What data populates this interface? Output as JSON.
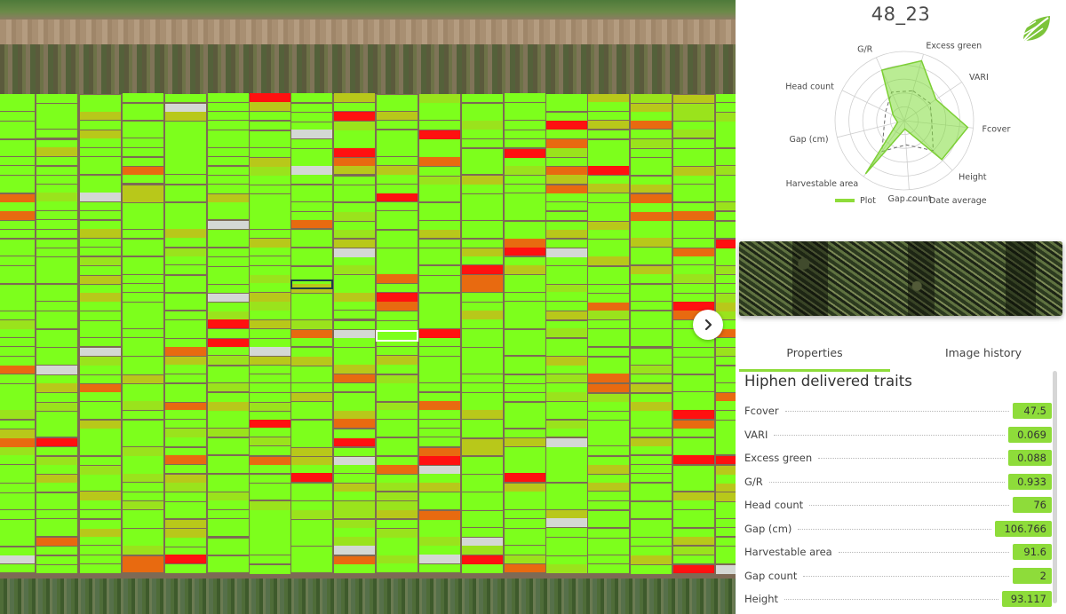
{
  "plot": {
    "title": "48_23"
  },
  "colors": {
    "green": "#7dff1c",
    "yellow_green": "#b8c81a",
    "orange": "#e86a10",
    "red": "#ff1010",
    "gray": "#d4d8d4",
    "accent": "#8edc3a"
  },
  "radar": {
    "axes": [
      "Excess green",
      "VARI",
      "Fcover",
      "Height",
      "Gap count",
      "Harvestable area",
      "Gap (cm)",
      "Head count",
      "G/R"
    ],
    "plot_values": [
      0.9,
      0.55,
      0.92,
      0.78,
      0.12,
      0.95,
      0.1,
      0.18,
      0.8
    ],
    "average_values": [
      0.45,
      0.45,
      0.4,
      0.6,
      0.35,
      0.55,
      0.3,
      0.3,
      0.45
    ],
    "legend": {
      "plot": "Plot",
      "average": "Date average"
    }
  },
  "map": {
    "next_icon": "chevron-right-icon"
  },
  "tabs": [
    {
      "label": "Properties",
      "active": true
    },
    {
      "label": "Image history",
      "active": false
    }
  ],
  "traits": {
    "heading": "Hiphen delivered traits",
    "items": [
      {
        "name": "Fcover",
        "value": "47.5"
      },
      {
        "name": "VARI",
        "value": "0.069"
      },
      {
        "name": "Excess green",
        "value": "0.088"
      },
      {
        "name": "G/R",
        "value": "0.933"
      },
      {
        "name": "Head count",
        "value": "76"
      },
      {
        "name": "Gap (cm)",
        "value": "106.766"
      },
      {
        "name": "Harvestable area",
        "value": "91.6"
      },
      {
        "name": "Gap count",
        "value": "2"
      },
      {
        "name": "Height",
        "value": "93.117"
      }
    ]
  }
}
